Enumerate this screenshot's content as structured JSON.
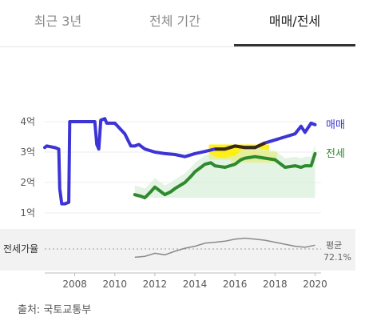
{
  "tabs": [
    {
      "label": "최근 3년",
      "active": false
    },
    {
      "label": "전체 기간",
      "active": false
    },
    {
      "label": "매매/전세",
      "active": true
    }
  ],
  "source": "출처: 국토교통부",
  "colors": {
    "sale": "#3d34d6",
    "jeonse": "#2f8a2f",
    "highlight": "#ffee00",
    "ratio": "#8a8a8a",
    "panel": "#f2f2f2"
  },
  "chart_data": {
    "type": "line",
    "xlim": [
      2006.5,
      2020.3
    ],
    "xticks": [
      "2008",
      "2010",
      "2012",
      "2014",
      "2016",
      "2018",
      "2020"
    ],
    "ylim": [
      1,
      4
    ],
    "yticks": [
      "1억",
      "2억",
      "3억",
      "4억"
    ],
    "series": [
      {
        "name": "매매",
        "label": "매매",
        "x": [
          2006.5,
          2006.6,
          2007.0,
          2007.2,
          2007.25,
          2007.35,
          2007.5,
          2007.7,
          2007.75,
          2007.9,
          2008.3,
          2009.0,
          2009.1,
          2009.2,
          2009.3,
          2009.5,
          2009.6,
          2010.0,
          2010.5,
          2010.8,
          2011.0,
          2011.2,
          2011.5,
          2012.0,
          2012.5,
          2013.0,
          2013.5,
          2014.0,
          2014.5,
          2015.0,
          2015.5,
          2016.0,
          2016.5,
          2017.0,
          2017.5,
          2018.0,
          2018.5,
          2019.0,
          2019.3,
          2019.5,
          2019.8,
          2020.0
        ],
        "values": [
          3.15,
          3.2,
          3.15,
          3.1,
          1.8,
          1.3,
          1.3,
          1.35,
          4.0,
          4.0,
          4.0,
          4.0,
          3.25,
          3.1,
          4.05,
          4.1,
          3.95,
          3.95,
          3.6,
          3.2,
          3.2,
          3.25,
          3.1,
          3.0,
          2.95,
          2.92,
          2.85,
          2.95,
          3.02,
          3.1,
          3.1,
          3.2,
          3.15,
          3.15,
          3.3,
          3.4,
          3.5,
          3.6,
          3.85,
          3.65,
          3.95,
          3.9
        ]
      },
      {
        "name": "전세",
        "label": "전세",
        "x": [
          2011.0,
          2011.3,
          2011.5,
          2011.8,
          2012.0,
          2012.3,
          2012.5,
          2012.8,
          2013.0,
          2013.5,
          2013.8,
          2014.0,
          2014.3,
          2014.5,
          2014.8,
          2015.0,
          2015.5,
          2016.0,
          2016.3,
          2016.5,
          2017.0,
          2017.5,
          2018.0,
          2018.5,
          2019.0,
          2019.3,
          2019.5,
          2019.8,
          2020.0
        ],
        "values": [
          1.6,
          1.55,
          1.5,
          1.7,
          1.85,
          1.7,
          1.6,
          1.7,
          1.8,
          2.0,
          2.2,
          2.35,
          2.5,
          2.6,
          2.65,
          2.55,
          2.5,
          2.6,
          2.75,
          2.8,
          2.85,
          2.8,
          2.75,
          2.5,
          2.55,
          2.5,
          2.55,
          2.55,
          2.95
        ]
      }
    ],
    "ratio": {
      "label": "전세가율",
      "avg_label": "평균",
      "avg_value": "72.1%",
      "x": [
        2011.0,
        2011.5,
        2012.0,
        2012.5,
        2013.0,
        2013.5,
        2014.0,
        2014.5,
        2015.0,
        2015.5,
        2016.0,
        2016.5,
        2017.0,
        2017.5,
        2018.0,
        2018.5,
        2019.0,
        2019.5,
        2020.0
      ],
      "values": [
        0.5,
        0.52,
        0.58,
        0.55,
        0.62,
        0.68,
        0.72,
        0.78,
        0.8,
        0.82,
        0.86,
        0.88,
        0.86,
        0.84,
        0.8,
        0.76,
        0.72,
        0.7,
        0.74
      ],
      "ylim": [
        0.3,
        1.0
      ]
    },
    "highlights": [
      {
        "x_range": [
          2014.7,
          2017.7
        ],
        "y_range": [
          2.75,
          3.25
        ],
        "series": "매매"
      },
      {
        "x_range": [
          2015.8,
          2018.1
        ],
        "y_range": [
          2.65,
          3.0
        ],
        "series": "전세"
      }
    ],
    "grid": true
  }
}
